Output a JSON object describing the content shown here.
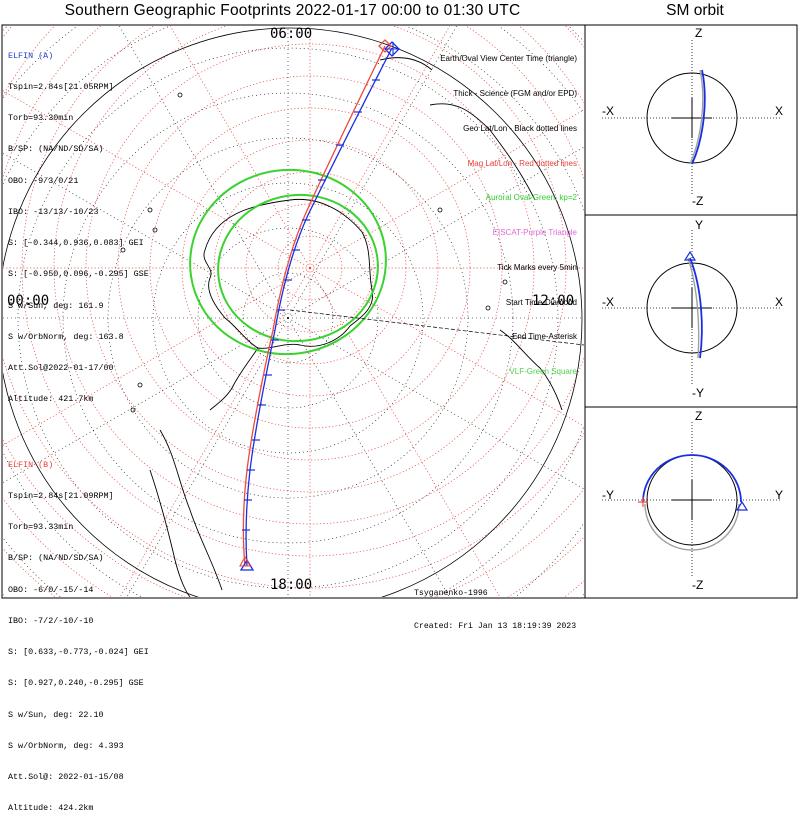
{
  "title": "Southern Geographic Footprints 2022-01-17 00:00 to 01:30 UTC",
  "sm_title": "SM orbit",
  "time_labels": {
    "top": "06:00",
    "left": "00:00",
    "right": "12:00",
    "bottom": "18:00"
  },
  "info_a": {
    "header": "ELFIN (A)",
    "lines": [
      "Tspin=2.84s[21.05RPM]",
      "Torb=93.30min",
      "B/SP: (NA/ND/SD/SA)",
      "OBO: -9/3/0/21",
      "IBO: -13/13/-10/23",
      "S: [-0.344,0.936,0.083] GEI",
      "S: [-0.950,0.096,-0.295] GSE",
      "S w/Sun, deg: 161.9",
      "S w/OrbNorm, deg: 163.8",
      "Att.Sol@2022-01-17/00",
      "Altitude: 421.7km"
    ]
  },
  "info_b": {
    "header": "ELFIN (B)",
    "lines": [
      "Tspin=2.84s[21.09RPM]",
      "Torb=93.33min",
      "B/SP: (NA/ND/SD/SA)",
      "OBO: -6/0/-15/-14",
      "IBO: -7/2/-10/-10",
      "S: [0.633,-0.773,-0.024] GEI",
      "S: [0.927,0.240,-0.295] GSE",
      "S w/Sun, deg: 22.10",
      "S w/OrbNorm, deg: 4.393",
      "Att.Sol@: 2022-01-15/08",
      "Altitude: 424.2km"
    ]
  },
  "legend": [
    {
      "text": "Earth/Oval View Center Time (triangle)",
      "color": "#000000"
    },
    {
      "text": "Thick - Science (FGM and/or EPD)",
      "color": "#000000"
    },
    {
      "text": "Geo Lat/Lon - Black dotted lines",
      "color": "#000000"
    },
    {
      "text": "Mag Lat/Lon - Red dotted lines",
      "color": "#e8413a"
    },
    {
      "text": "Auroral Oval-Green, kp=2",
      "color": "#2fd12f"
    },
    {
      "text": "EISCAT-Purple Triangle",
      "color": "#e06ad8"
    },
    {
      "text": "Tick Marks every 5min",
      "color": "#000000"
    },
    {
      "text": "Start Time-Diamond",
      "color": "#000000"
    },
    {
      "text": "End Time-Asterisk",
      "color": "#000000"
    },
    {
      "text": "VLF-Green Square",
      "color": "#4fd24f"
    }
  ],
  "credits": [
    "Tsyganenko-1996",
    "Created: Fri Jan 13 18:19:39 2023"
  ],
  "colors": {
    "elfin_a": "#1a2fe0",
    "elfin_b": "#f04a3a",
    "mag_grid": "#e8413a",
    "geo_grid": "#000000",
    "oval": "#3ad22f",
    "sm_grey": "#a0a0a0"
  },
  "sm_panels": [
    {
      "name": "xz",
      "top": "Z",
      "bottom": "-Z",
      "left": "-X",
      "right": "X"
    },
    {
      "name": "xy",
      "top": "Y",
      "bottom": "-Y",
      "left": "-X",
      "right": "X"
    },
    {
      "name": "yz",
      "top": "Z",
      "bottom": "-Z",
      "left": "-Y",
      "right": "Y"
    }
  ],
  "chart_data": {
    "type": "line",
    "title": "Southern Geographic Footprints 2022-01-17 00:00 to 01:30 UTC",
    "projection": "south polar, magnetic local time",
    "mlt_labels": [
      "06:00",
      "00:00",
      "12:00",
      "18:00"
    ],
    "series": [
      {
        "name": "ELFIN (A)",
        "color": "#1a2fe0",
        "start": "diamond",
        "end": "asterisk",
        "tick_interval_min": 5
      },
      {
        "name": "ELFIN (B)",
        "color": "#f04a3a",
        "start": "diamond",
        "end": "asterisk",
        "tick_interval_min": 5
      }
    ],
    "auroral_oval_kp": 2,
    "grid": "on"
  }
}
